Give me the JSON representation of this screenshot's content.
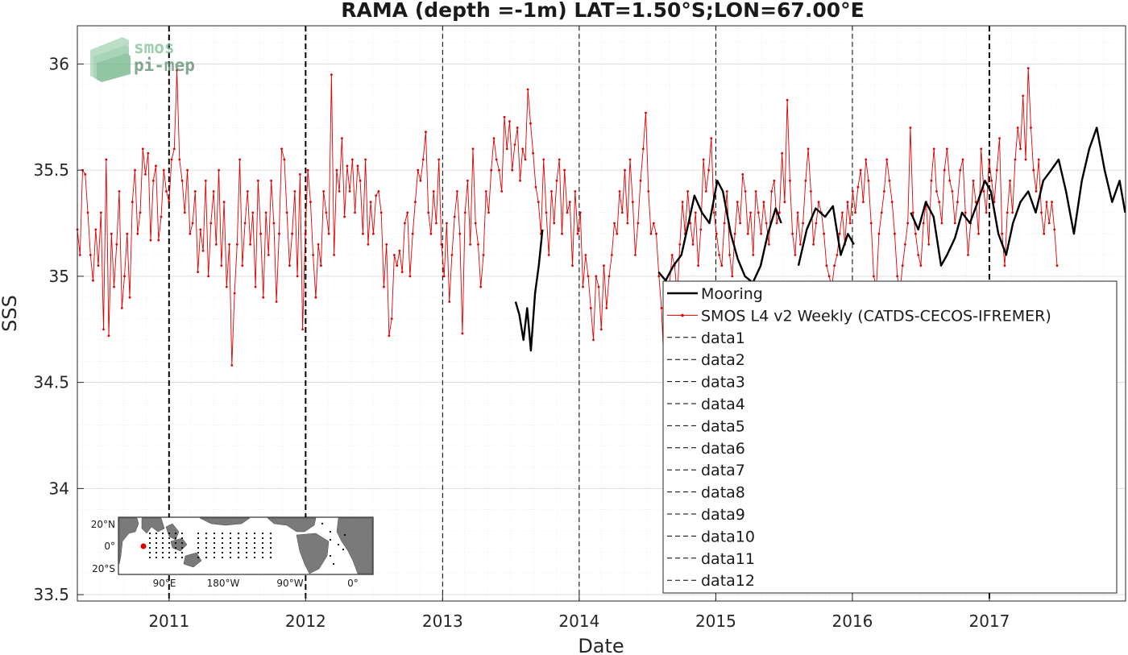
{
  "logo": {
    "line1": "smos",
    "line2": "pi-mep"
  },
  "chart_data": {
    "type": "line",
    "title": "RAMA (depth =-1m) LAT=1.50°S;LON=67.00°E",
    "xlabel": "Date",
    "ylabel": "SSS",
    "xlim": [
      "2010-05-01",
      "2017-12-31"
    ],
    "ylim": [
      33.47,
      36.18
    ],
    "xticks": [
      "2011-01-01",
      "2012-01-01",
      "2013-01-01",
      "2014-01-01",
      "2015-01-01",
      "2016-01-01",
      "2017-01-01"
    ],
    "xtick_labels": [
      "2011",
      "2012",
      "2013",
      "2014",
      "2015",
      "2016",
      "2017"
    ],
    "yticks": [
      33.5,
      34,
      34.5,
      35,
      35.5,
      36
    ],
    "ytick_labels": [
      "33.5",
      "34",
      "34.5",
      "35",
      "35.5",
      "36"
    ],
    "grid": true,
    "legend_position": "bottom-right",
    "colors": {
      "mooring": "#000000",
      "smos": "#e00000",
      "vline": "#000000"
    },
    "series": [
      {
        "name": "Mooring",
        "style": "solid-thick",
        "segments": [
          {
            "x": [
              "2013-07-15",
              "2013-07-25",
              "2013-08-05",
              "2013-08-15",
              "2013-08-25",
              "2013-09-05",
              "2013-09-15",
              "2013-09-25"
            ],
            "y": [
              34.88,
              34.82,
              34.7,
              34.85,
              34.65,
              34.92,
              35.05,
              35.22
            ]
          },
          {
            "x": [
              "2014-08-01",
              "2014-08-20",
              "2014-09-10",
              "2014-10-01",
              "2014-10-20",
              "2014-11-05",
              "2014-11-25",
              "2014-12-15",
              "2015-01-05",
              "2015-01-20",
              "2015-02-10",
              "2015-03-01",
              "2015-03-20",
              "2015-04-10",
              "2015-05-01",
              "2015-05-20",
              "2015-06-10",
              "2015-06-25"
            ],
            "y": [
              35.02,
              34.98,
              35.05,
              35.1,
              35.25,
              35.38,
              35.3,
              35.25,
              35.45,
              35.4,
              35.2,
              35.08,
              35.0,
              34.97,
              35.05,
              35.2,
              35.32,
              35.25
            ]
          },
          {
            "x": [
              "2015-08-10",
              "2015-09-01",
              "2015-09-25",
              "2015-10-20",
              "2015-11-10",
              "2015-12-01",
              "2015-12-20",
              "2016-01-05"
            ],
            "y": [
              35.05,
              35.22,
              35.32,
              35.28,
              35.33,
              35.1,
              35.2,
              35.15
            ]
          },
          {
            "x": [
              "2016-06-05",
              "2016-06-25",
              "2016-07-15",
              "2016-08-05",
              "2016-08-25",
              "2016-09-10",
              "2016-10-01",
              "2016-10-20",
              "2016-11-10",
              "2016-12-01",
              "2016-12-20",
              "2017-01-05",
              "2017-01-25",
              "2017-02-15",
              "2017-03-05",
              "2017-03-25",
              "2017-04-15",
              "2017-05-05",
              "2017-05-25",
              "2017-06-15",
              "2017-07-05",
              "2017-07-25",
              "2017-08-15",
              "2017-09-05",
              "2017-09-25",
              "2017-10-15",
              "2017-11-05",
              "2017-11-25",
              "2017-12-15",
              "2017-12-30"
            ],
            "y": [
              35.3,
              35.22,
              35.35,
              35.28,
              35.05,
              35.1,
              35.18,
              35.3,
              35.25,
              35.35,
              35.45,
              35.4,
              35.2,
              35.1,
              35.25,
              35.35,
              35.4,
              35.3,
              35.45,
              35.5,
              35.55,
              35.4,
              35.2,
              35.45,
              35.6,
              35.7,
              35.5,
              35.35,
              35.45,
              35.3
            ]
          }
        ]
      },
      {
        "name": "SMOS L4 v2 Weekly (CATDS-CECOS-IFREMER)",
        "style": "thin-with-dots",
        "x_start": "2010-05-01",
        "x_step_days": 7,
        "y": [
          35.22,
          35.1,
          35.5,
          35.48,
          35.3,
          35.1,
          34.98,
          35.22,
          35.05,
          35.3,
          34.75,
          35.55,
          34.72,
          35.2,
          34.95,
          35.15,
          35.4,
          34.85,
          35.0,
          35.2,
          34.9,
          35.35,
          35.5,
          35.2,
          35.3,
          35.6,
          35.48,
          35.58,
          35.17,
          35.45,
          35.52,
          35.17,
          35.28,
          35.5,
          35.4,
          35.35,
          35.55,
          35.6,
          35.97,
          35.55,
          35.45,
          35.3,
          35.5,
          35.2,
          35.25,
          35.4,
          35.02,
          35.22,
          35.12,
          35.45,
          35.0,
          35.25,
          35.4,
          35.15,
          35.5,
          35.05,
          35.35,
          34.95,
          35.15,
          34.58,
          34.92,
          35.15,
          35.55,
          35.05,
          35.25,
          35.4,
          35.15,
          35.3,
          34.95,
          35.45,
          35.2,
          34.9,
          35.3,
          35.1,
          35.45,
          35.25,
          34.88,
          35.2,
          35.6,
          35.55,
          35.3,
          35.05,
          35.2,
          35.4,
          35.0,
          35.48,
          34.75,
          35.2,
          35.5,
          35.35,
          35.1,
          34.9,
          35.15,
          35.05,
          35.4,
          35.3,
          35.2,
          35.95,
          35.1,
          35.5,
          35.4,
          35.65,
          35.28,
          35.52,
          35.4,
          35.55,
          35.3,
          35.52,
          35.45,
          35.2,
          35.55,
          35.15,
          35.35,
          35.2,
          35.38,
          35.4,
          35.3,
          34.95,
          35.15,
          34.72,
          34.8,
          35.1,
          35.05,
          35.12,
          35.02,
          35.25,
          35.3,
          35.0,
          35.2,
          35.35,
          35.5,
          35.45,
          35.55,
          35.68,
          35.3,
          35.2,
          35.4,
          35.25,
          35.55,
          35.15,
          35.0,
          35.25,
          34.88,
          35.1,
          35.28,
          35.4,
          35.2,
          34.73,
          35.3,
          35.45,
          35.15,
          35.6,
          35.25,
          35.15,
          34.95,
          35.1,
          35.4,
          35.3,
          35.5,
          35.65,
          35.55,
          35.5,
          35.4,
          35.75,
          35.6,
          35.73,
          35.5,
          35.62,
          35.7,
          35.45,
          35.6,
          35.55,
          35.88,
          35.72,
          35.58,
          35.42,
          35.35,
          35.2,
          35.55,
          35.3,
          35.1,
          35.4,
          35.25,
          35.45,
          35.55,
          35.2,
          35.5,
          35.3,
          35.35,
          35.05,
          35.4,
          35.2,
          35.3,
          34.95,
          35.1,
          35.0,
          34.85,
          34.7,
          35.0,
          34.95,
          34.75,
          35.05,
          34.85,
          35.0,
          35.1,
          35.25,
          35.2,
          35.4,
          35.3,
          35.5,
          35.25,
          35.55,
          35.35,
          35.1,
          35.25,
          35.45,
          35.6,
          35.77,
          35.4,
          35.2,
          35.25,
          35.2,
          35.0,
          34.85,
          34.55,
          34.7,
          34.95,
          35.1,
          35.05,
          34.9,
          35.15,
          35.35,
          35.2,
          35.4,
          35.25,
          35.15,
          35.3,
          35.05,
          35.22,
          35.55,
          35.4,
          35.5,
          35.65,
          35.3,
          35.2,
          35.1,
          35.05,
          35.25,
          35.4,
          35.1,
          35.0,
          35.2,
          35.35,
          35.25,
          35.48,
          35.4,
          35.2,
          35.3,
          35.1,
          35.4,
          35.3,
          35.2,
          35.35,
          35.25,
          35.15,
          35.4,
          35.45,
          35.25,
          35.3,
          35.58,
          35.35,
          35.83,
          35.45,
          35.2,
          35.1,
          35.3,
          35.15,
          35.25,
          35.45,
          35.6,
          35.4,
          35.15,
          35.25,
          35.35,
          35.3,
          35.2,
          35.05,
          35.0,
          34.95,
          35.05,
          35.1,
          35.2,
          35.3,
          35.15,
          35.35,
          35.25,
          35.4,
          35.3,
          35.42,
          35.5,
          35.35,
          35.55,
          35.45,
          35.25,
          35.0,
          34.95,
          35.2,
          35.3,
          35.4,
          35.55,
          35.45,
          35.35,
          35.2,
          35.0,
          34.92,
          35.05,
          35.15,
          35.25,
          35.7,
          35.3,
          35.2,
          35.1,
          35.05,
          35.25,
          35.35,
          35.15,
          35.45,
          35.6,
          35.4,
          35.35,
          35.25,
          35.5,
          35.6,
          35.45,
          35.4,
          35.25,
          35.35,
          35.5,
          35.55,
          35.3,
          35.1,
          35.25,
          35.45,
          35.35,
          35.2,
          35.6,
          35.4,
          35.3,
          35.55,
          35.45,
          35.35,
          35.5,
          35.65,
          35.2,
          35.05,
          35.3,
          35.45,
          35.3,
          35.55,
          35.7,
          35.6,
          35.85,
          35.55,
          35.98,
          35.7,
          35.5,
          35.4,
          35.55,
          35.3,
          35.2,
          35.35,
          35.25,
          35.35,
          35.22,
          35.05
        ]
      },
      {
        "name": "data1"
      },
      {
        "name": "data2"
      },
      {
        "name": "data3"
      },
      {
        "name": "data4"
      },
      {
        "name": "data5"
      },
      {
        "name": "data6"
      },
      {
        "name": "data7"
      },
      {
        "name": "data8"
      },
      {
        "name": "data9"
      },
      {
        "name": "data10"
      },
      {
        "name": "data11"
      },
      {
        "name": "data12"
      }
    ],
    "vertical_markers": [
      {
        "x": "2011-01-01",
        "style": "bold"
      },
      {
        "x": "2012-01-01",
        "style": "bold"
      },
      {
        "x": "2013-01-01",
        "style": "thin"
      },
      {
        "x": "2014-01-01",
        "style": "thin"
      },
      {
        "x": "2015-01-01",
        "style": "thin"
      },
      {
        "x": "2016-01-01",
        "style": "thin"
      },
      {
        "x": "2017-01-01",
        "style": "bold"
      }
    ],
    "inset_map": {
      "lat_labels": [
        "20°N",
        "0°",
        "20°S"
      ],
      "lon_labels": [
        "90°E",
        "180°W",
        "90°W",
        "0°"
      ]
    }
  }
}
